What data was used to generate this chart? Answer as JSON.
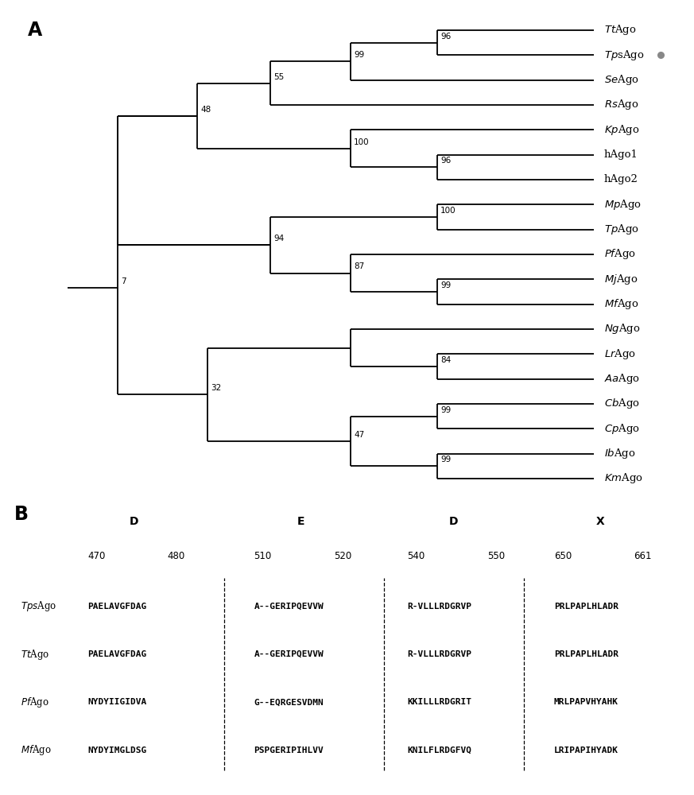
{
  "panel_A_label": "A",
  "panel_B_label": "B",
  "taxa_order": [
    "TtAgo",
    "TpsAgo",
    "SeAgo",
    "RsAgo",
    "KpAgo",
    "hAgo1",
    "hAgo2",
    "MpAgo",
    "TpAgo",
    "PfAgo",
    "MjAgo",
    "MfAgo",
    "NgAgo",
    "LrAgo",
    "AaAgo",
    "CbAgo",
    "CpAgo",
    "IbAgo",
    "KmAgo"
  ],
  "taxa_italic_prefix": [
    2,
    2,
    2,
    2,
    2,
    0,
    0,
    2,
    2,
    2,
    2,
    2,
    2,
    2,
    2,
    2,
    2,
    2,
    2
  ],
  "tps_ago_dot": true,
  "gray_dot_color": "#888888",
  "alignment": {
    "row_labels": [
      "TpsAgo",
      "TtAgo",
      "PfAgo",
      "MfAgo"
    ],
    "row_italic_prefix": [
      3,
      2,
      2,
      2
    ],
    "blocks": [
      {
        "header_letter": "D",
        "num_start": "470",
        "num_end": "480",
        "sequences": [
          "PAELAVGFDAG",
          "PAELAVGFDAG",
          "NYDYIIGIDVA",
          "NYDYIMGLDSG"
        ]
      },
      {
        "header_letter": "E",
        "num_start": "510",
        "num_end": "520",
        "sequences": [
          "A--GERIPQEVVW",
          "A--GERIPQEVVW",
          "G--EQRGESVDMN",
          "PSPGERIPIHLVV"
        ]
      },
      {
        "header_letter": "D",
        "num_start": "540",
        "num_end": "550",
        "sequences": [
          "R-VLLLRDGRVP",
          "R-VLLLRDGRVP",
          "KKILLLRDGRIT",
          "KNILFLRDGFVQ"
        ]
      },
      {
        "header_letter": "X",
        "num_start": "650",
        "num_end": "661",
        "sequences": [
          "PRLPAPLHLADR",
          "PRLPAPLHLADR",
          "MRLPAPVHYAHK",
          "LRIPAPIHYADK"
        ]
      }
    ]
  },
  "background_color": "#ffffff",
  "line_color": "#000000",
  "text_color": "#000000"
}
